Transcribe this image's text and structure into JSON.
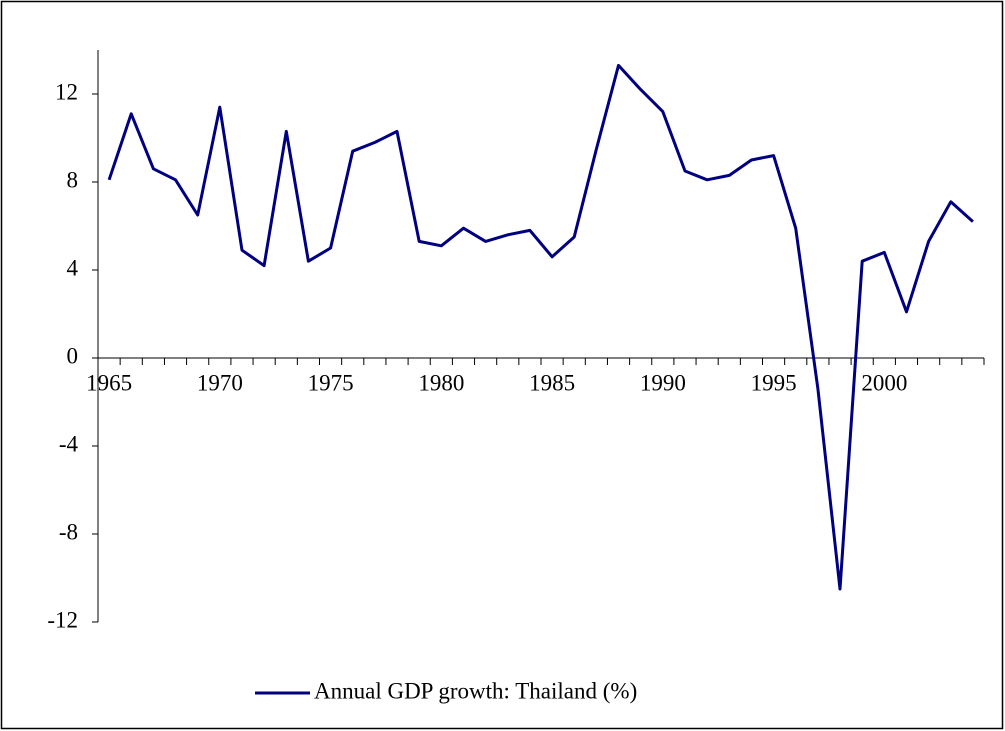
{
  "chart_data": {
    "type": "line",
    "categories": [
      "1965",
      null,
      null,
      null,
      null,
      "1970",
      null,
      null,
      null,
      null,
      "1975",
      null,
      null,
      null,
      null,
      "1980",
      null,
      null,
      null,
      null,
      "1985",
      null,
      null,
      null,
      null,
      "1990",
      null,
      null,
      null,
      null,
      "1995",
      null,
      null,
      null,
      null,
      "2000",
      null,
      null,
      null,
      null
    ],
    "series": [
      {
        "name": "Annual GDP growth: Thailand (%)",
        "color": "#000080",
        "values": [
          8.1,
          11.1,
          8.6,
          8.1,
          6.5,
          11.4,
          4.9,
          4.2,
          10.3,
          4.4,
          5.0,
          9.4,
          9.8,
          10.3,
          5.3,
          5.1,
          5.9,
          5.3,
          5.6,
          5.8,
          4.6,
          5.5,
          9.5,
          13.3,
          12.2,
          11.2,
          8.5,
          8.1,
          8.3,
          9.0,
          9.2,
          5.9,
          -1.4,
          -10.5,
          4.4,
          4.8,
          2.1,
          5.3,
          7.1,
          6.2
        ]
      }
    ],
    "ylim": [
      -12,
      14
    ],
    "yticks": [
      -12,
      -8,
      -4,
      0,
      4,
      8,
      12
    ],
    "legend": "bottom"
  }
}
